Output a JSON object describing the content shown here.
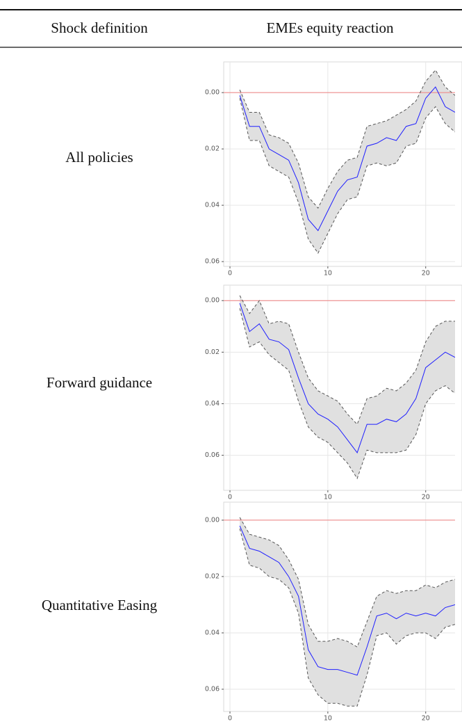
{
  "table": {
    "headers": [
      "Shock definition",
      "EMEs equity reaction"
    ],
    "rows": [
      "All policies",
      "Forward guidance",
      "Quantitative Easing"
    ]
  },
  "chart_data": [
    {
      "type": "line",
      "y_reversed": true,
      "grid": true,
      "x": [
        1,
        2,
        3,
        4,
        5,
        6,
        7,
        8,
        9,
        10,
        11,
        12,
        13,
        14,
        15,
        16,
        17,
        18,
        19,
        20,
        21,
        22,
        23
      ],
      "series": [
        {
          "color": "#1f1fff",
          "values": [
            0.001,
            0.012,
            0.012,
            0.02,
            0.022,
            0.024,
            0.032,
            0.045,
            0.049,
            0.042,
            0.035,
            0.031,
            0.03,
            0.019,
            0.018,
            0.016,
            0.017,
            0.012,
            0.011,
            0.002,
            -0.002,
            0.005,
            0.007
          ]
        }
      ],
      "lower": [
        -0.001,
        0.007,
        0.007,
        0.015,
        0.016,
        0.018,
        0.025,
        0.037,
        0.041,
        0.034,
        0.028,
        0.024,
        0.023,
        0.012,
        0.011,
        0.01,
        0.008,
        0.006,
        0.003,
        -0.004,
        -0.008,
        -0.002,
        0.001
      ],
      "upper": [
        0.002,
        0.017,
        0.017,
        0.026,
        0.028,
        0.03,
        0.039,
        0.052,
        0.057,
        0.05,
        0.043,
        0.038,
        0.037,
        0.026,
        0.025,
        0.026,
        0.025,
        0.019,
        0.018,
        0.009,
        0.005,
        0.011,
        0.014
      ],
      "band_color": "#e0e0e0",
      "reference_line": {
        "value": 0,
        "color": "#f08080"
      },
      "xlim": [
        -0.64,
        23.0
      ],
      "xticks": [
        0,
        10,
        20
      ],
      "ylim": [
        -0.0109,
        0.0617
      ],
      "yticks": [
        {
          "value": 0,
          "label": "0.00"
        },
        0.02,
        0.04,
        0.06
      ]
    },
    {
      "type": "line",
      "y_reversed": true,
      "grid": true,
      "x": [
        1,
        2,
        3,
        4,
        5,
        6,
        7,
        8,
        9,
        10,
        11,
        12,
        13,
        14,
        15,
        16,
        17,
        18,
        19,
        20,
        21,
        22,
        23
      ],
      "series": [
        {
          "color": "#1f1fff",
          "values": [
            0.001,
            0.012,
            0.009,
            0.015,
            0.016,
            0.019,
            0.03,
            0.04,
            0.044,
            0.046,
            0.049,
            0.054,
            0.059,
            0.048,
            0.048,
            0.046,
            0.047,
            0.044,
            0.038,
            0.026,
            0.023,
            0.02,
            0.022
          ]
        }
      ],
      "lower": [
        -0.002,
        0.005,
        0.0,
        0.009,
        0.008,
        0.009,
        0.02,
        0.03,
        0.035,
        0.037,
        0.039,
        0.044,
        0.048,
        0.038,
        0.037,
        0.034,
        0.035,
        0.032,
        0.027,
        0.016,
        0.01,
        0.008,
        0.008
      ],
      "upper": [
        0.003,
        0.018,
        0.016,
        0.021,
        0.024,
        0.027,
        0.039,
        0.049,
        0.053,
        0.055,
        0.059,
        0.063,
        0.069,
        0.058,
        0.059,
        0.059,
        0.059,
        0.058,
        0.052,
        0.04,
        0.035,
        0.033,
        0.036
      ],
      "band_color": "#e0e0e0",
      "reference_line": {
        "value": 0,
        "color": "#f08080"
      },
      "xlim": [
        -0.64,
        23.0
      ],
      "xticks": [
        0,
        10,
        20
      ],
      "ylim": [
        -0.006,
        0.0736
      ],
      "yticks": [
        {
          "value": 0,
          "label": "0.00"
        },
        0.02,
        0.04,
        0.06
      ]
    },
    {
      "type": "line",
      "y_reversed": true,
      "grid": true,
      "x": [
        1,
        2,
        3,
        4,
        5,
        6,
        7,
        8,
        9,
        10,
        11,
        12,
        13,
        14,
        15,
        16,
        17,
        18,
        19,
        20,
        21,
        22,
        23
      ],
      "series": [
        {
          "color": "#1f1fff",
          "values": [
            0.002,
            0.01,
            0.011,
            0.013,
            0.015,
            0.02,
            0.027,
            0.046,
            0.052,
            0.053,
            0.053,
            0.054,
            0.055,
            0.045,
            0.034,
            0.033,
            0.035,
            0.033,
            0.034,
            0.033,
            0.034,
            0.031,
            0.03
          ]
        }
      ],
      "lower": [
        -0.001,
        0.005,
        0.006,
        0.007,
        0.009,
        0.014,
        0.021,
        0.037,
        0.043,
        0.043,
        0.042,
        0.043,
        0.045,
        0.036,
        0.027,
        0.025,
        0.026,
        0.025,
        0.025,
        0.023,
        0.024,
        0.022,
        0.021
      ],
      "upper": [
        0.003,
        0.016,
        0.017,
        0.02,
        0.021,
        0.024,
        0.033,
        0.056,
        0.062,
        0.065,
        0.065,
        0.066,
        0.066,
        0.055,
        0.041,
        0.04,
        0.044,
        0.041,
        0.04,
        0.04,
        0.042,
        0.038,
        0.037
      ],
      "band_color": "#e0e0e0",
      "reference_line": {
        "value": 0,
        "color": "#f08080"
      },
      "xlim": [
        -0.64,
        23.0
      ],
      "xticks": [
        0,
        10,
        20
      ],
      "ylim": [
        -0.0064,
        0.0679
      ],
      "yticks": [
        {
          "value": 0,
          "label": "0.00"
        },
        0.02,
        0.04,
        0.06
      ]
    }
  ]
}
